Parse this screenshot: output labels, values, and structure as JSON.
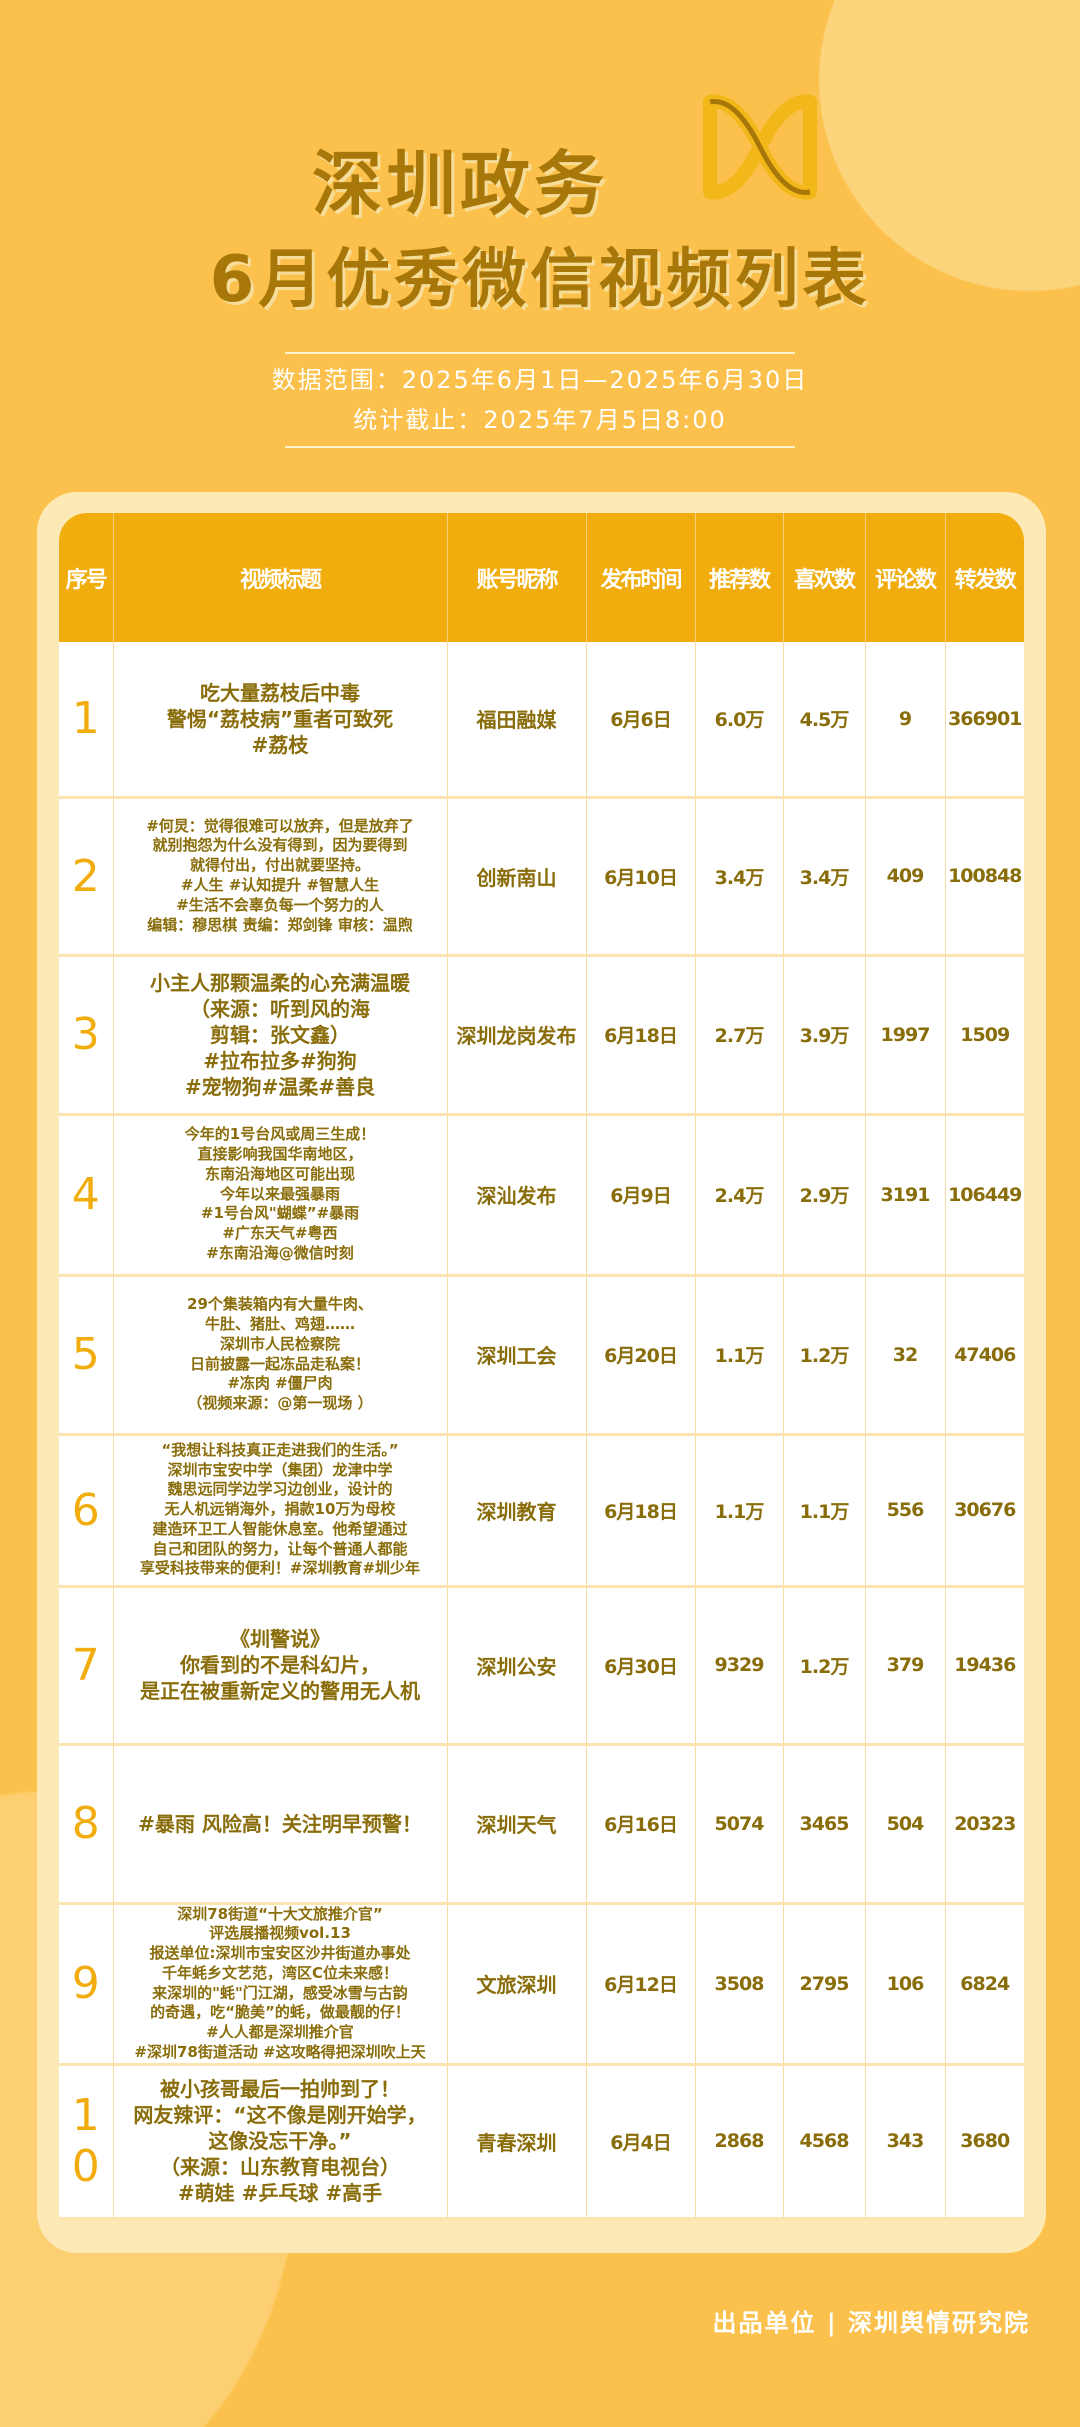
{
  "header": {
    "title_line1": "深圳政务",
    "title_line2": "6月优秀微信视频列表",
    "data_range": "数据范围：2025年6月1日—2025年6月30日",
    "cutoff": "统计截止：2025年7月5日8:00",
    "logo_icon": "wechat-channels-icon"
  },
  "table": {
    "columns": [
      "序号",
      "视频标题",
      "账号昵称",
      "发布时间",
      "推荐数",
      "喜欢数",
      "评论数",
      "转发数"
    ],
    "rows": [
      {
        "no": "1",
        "title": "吃大量荔枝后中毒\n警惕“荔枝病”重者可致死\n#荔枝",
        "account": "福田融媒",
        "date": "6月6日",
        "recommend": "6.0万",
        "likes": "4.5万",
        "comments": "9",
        "shares": "366901"
      },
      {
        "no": "2",
        "title": "#何炅：觉得很难可以放弃，但是放弃了\n就别抱怨为什么没有得到，因为要得到\n就得付出，付出就要坚持。\n#人生 #认知提升 #智慧人生\n#生活不会辜负每一个努力的人\n编辑：穆思棋  责编：郑剑锋  审核：温煦",
        "account": "创新南山",
        "date": "6月10日",
        "recommend": "3.4万",
        "likes": "3.4万",
        "comments": "409",
        "shares": "100848"
      },
      {
        "no": "3",
        "title": "小主人那颗温柔的心充满温暖\n（来源：听到风的海\n剪辑：张文鑫）\n#拉布拉多#狗狗\n#宠物狗#温柔#善良",
        "account": "深圳龙岗发布",
        "date": "6月18日",
        "recommend": "2.7万",
        "likes": "3.9万",
        "comments": "1997",
        "shares": "1509"
      },
      {
        "no": "4",
        "title": "今年的1号台风或周三生成！\n直接影响我国华南地区，\n东南沿海地区可能出现\n今年以来最强暴雨\n#1号台风\"蝴蝶”#暴雨\n#广东天气#粤西\n#东南沿海@微信时刻",
        "account": "深汕发布",
        "date": "6月9日",
        "recommend": "2.4万",
        "likes": "2.9万",
        "comments": "3191",
        "shares": "106449"
      },
      {
        "no": "5",
        "title": "29个集装箱内有大量牛肉、\n牛肚、猪肚、鸡翅……\n深圳市人民检察院\n日前披露一起冻品走私案！\n#冻肉 #僵尸肉\n（视频来源：@第一现场 ）",
        "account": "深圳工会",
        "date": "6月20日",
        "recommend": "1.1万",
        "likes": "1.2万",
        "comments": "32",
        "shares": "47406"
      },
      {
        "no": "6",
        "title": "“我想让科技真正走进我们的生活。”\n深圳市宝安中学（集团）龙津中学\n魏思远同学边学习边创业，设计的\n无人机远销海外，捐款10万为母校\n建造环卫工人智能休息室。他希望通过\n自己和团队的努力，让每个普通人都能\n享受科技带来的便利！#深圳教育#圳少年",
        "account": "深圳教育",
        "date": "6月18日",
        "recommend": "1.1万",
        "likes": "1.1万",
        "comments": "556",
        "shares": "30676"
      },
      {
        "no": "7",
        "title": "《圳警说》\n你看到的不是科幻片，\n是正在被重新定义的警用无人机",
        "account": "深圳公安",
        "date": "6月30日",
        "recommend": "9329",
        "likes": "1.2万",
        "comments": "379",
        "shares": "19436"
      },
      {
        "no": "8",
        "title": "#暴雨 风险高！关注明早预警！",
        "account": "深圳天气",
        "date": "6月16日",
        "recommend": "5074",
        "likes": "3465",
        "comments": "504",
        "shares": "20323"
      },
      {
        "no": "9",
        "title": "深圳78街道“十大文旅推介官”\n评选展播视频vol.13\n报送单位:深圳市宝安区沙井街道办事处\n千年蚝乡文艺范，湾区C位未来感！\n来深圳的\"蚝\"门江湖，感受冰雪与古韵\n的奇遇，吃“脆美”的蚝，做最靓的仔！\n#人人都是深圳推介官\n#深圳78街道活动 #这攻略得把深圳吹上天",
        "account": "文旅深圳",
        "date": "6月12日",
        "recommend": "3508",
        "likes": "2795",
        "comments": "106",
        "shares": "6824"
      },
      {
        "no": "10",
        "title": "被小孩哥最后一拍帅到了！\n网友辣评：“这不像是刚开始学，\n这像没忘干净。”\n（来源：山东教育电视台）\n#萌娃 #乒乓球 #高手",
        "account": "青春深圳",
        "date": "6月4日",
        "recommend": "2868",
        "likes": "4568",
        "comments": "343",
        "shares": "3680"
      }
    ]
  },
  "footer": "出品单位 | 深圳舆情研究院",
  "colors": {
    "background": "#fbc14c",
    "header": "#f0ad0d",
    "text": "#8a6d0b"
  }
}
